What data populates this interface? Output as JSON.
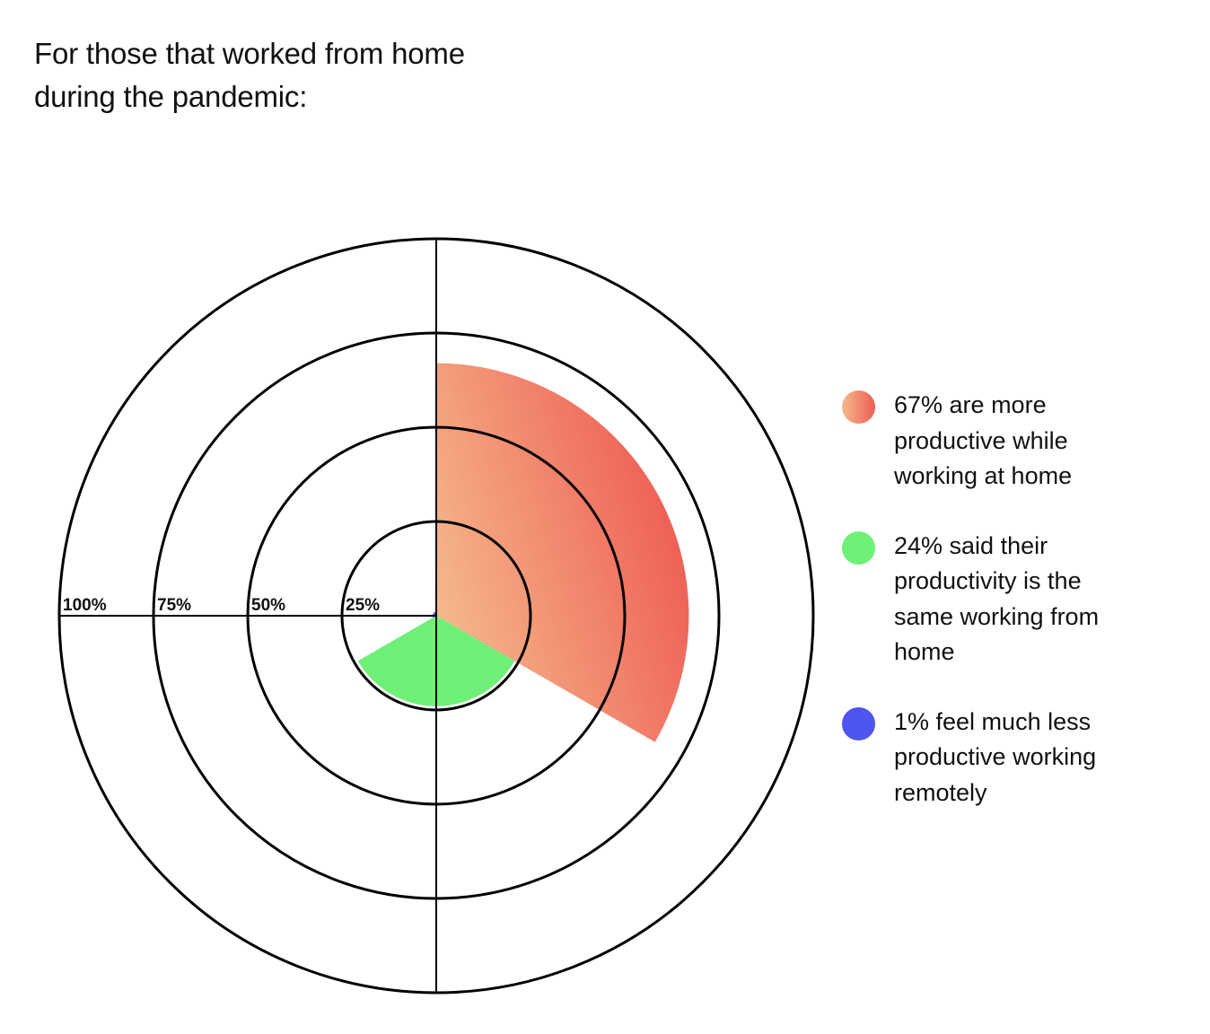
{
  "title_lines": [
    "For those that worked from home",
    "during the pandemic:"
  ],
  "chart_data": {
    "type": "polar-area",
    "radial_axis": {
      "ticks": [
        25,
        50,
        75,
        100
      ],
      "tick_labels": [
        "25%",
        "50%",
        "75%",
        "100%"
      ],
      "range": [
        0,
        100
      ]
    },
    "grid": true,
    "legend_position": "right",
    "slices": [
      {
        "value": 67,
        "start_angle_deg": 0,
        "end_angle_deg": 120,
        "color_from": "#F5B98C",
        "color_to": "#EE5D55",
        "legend_lines": [
          "67% are more",
          "productive while",
          "working at home"
        ]
      },
      {
        "value": 24,
        "start_angle_deg": 120,
        "end_angle_deg": 240,
        "color_from": "#6EF077",
        "color_to": "#6EF077",
        "legend_lines": [
          "24% said their",
          "productivity is the",
          "same working from",
          "home"
        ]
      },
      {
        "value": 1,
        "start_angle_deg": 240,
        "end_angle_deg": 360,
        "color_from": "#4F55EF",
        "color_to": "#4F55EF",
        "legend_lines": [
          "1% feel much less",
          "productive working",
          "remotely"
        ]
      }
    ]
  }
}
